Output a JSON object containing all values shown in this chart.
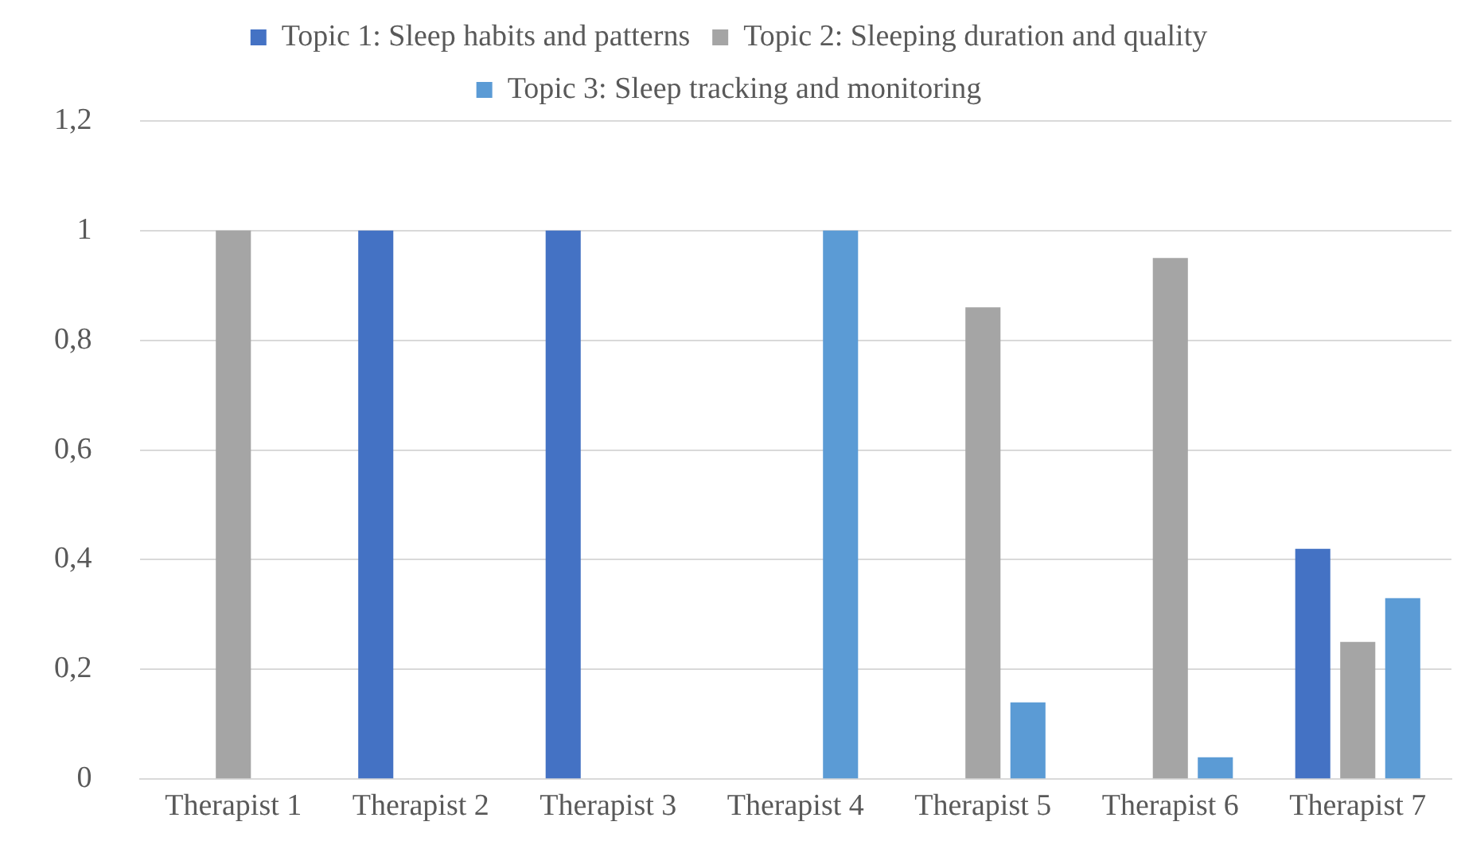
{
  "chart_data": {
    "type": "bar",
    "categories": [
      "Therapist 1",
      "Therapist 2",
      "Therapist 3",
      "Therapist 4",
      "Therapist 5",
      "Therapist 6",
      "Therapist 7"
    ],
    "series": [
      {
        "name": "Topic 1: Sleep habits and patterns",
        "color": "#4472c4",
        "values": [
          0,
          1,
          1,
          0,
          0,
          0,
          0.42
        ]
      },
      {
        "name": "Topic 2: Sleeping duration and quality",
        "color": "#a5a5a5",
        "values": [
          1,
          0,
          0,
          0,
          0.86,
          0.95,
          0.25
        ]
      },
      {
        "name": "Topic 3: Sleep tracking and monitoring",
        "color": "#5b9bd5",
        "values": [
          0,
          0,
          0,
          1,
          0.14,
          0.04,
          0.33
        ]
      }
    ],
    "ylim": [
      0,
      1.2
    ],
    "yticks": [
      0,
      {
        "value": 0.2,
        "label": "0,2"
      },
      {
        "value": 0.4,
        "label": "0,4"
      },
      {
        "value": 0.6,
        "label": "0,6"
      },
      {
        "value": 0.8,
        "label": "0,8"
      },
      1,
      {
        "value": 1.2,
        "label": "1,2"
      }
    ],
    "grid": "y",
    "legend": "top"
  }
}
